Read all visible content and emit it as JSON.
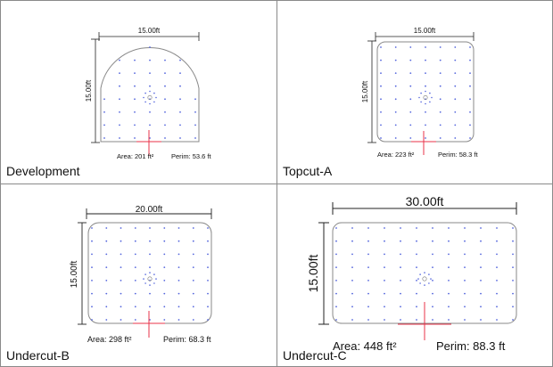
{
  "panels": [
    {
      "name": "development",
      "caption": "Development",
      "shape": "arched",
      "width_label": "15.00ft",
      "height_label": "15.00ft",
      "area_label": "Area: 201 ft²",
      "perim_label": "Perim: 53.6 ft",
      "accent": "#e8334a",
      "dot_color": "#5566dd"
    },
    {
      "name": "topcut-a",
      "caption": "Topcut-A",
      "shape": "rounded",
      "width_label": "15.00ft",
      "height_label": "15.00ft",
      "area_label": "Area: 223 ft²",
      "perim_label": "Perim: 58.3 ft",
      "accent": "#e8334a",
      "dot_color": "#5566dd"
    },
    {
      "name": "undercut-b",
      "caption": "Undercut-B",
      "shape": "rounded",
      "width_label": "20.00ft",
      "height_label": "15.00ft",
      "area_label": "Area: 298 ft²",
      "perim_label": "Perim: 68.3 ft",
      "accent": "#e8334a",
      "dot_color": "#5566dd"
    },
    {
      "name": "undercut-c",
      "caption": "Undercut-C",
      "shape": "rounded",
      "width_label": "30.00ft",
      "height_label": "15.00ft",
      "area_label": "Area: 448 ft²",
      "perim_label": "Perim: 88.3 ft",
      "accent": "#e8334a",
      "dot_color": "#5566dd"
    }
  ]
}
